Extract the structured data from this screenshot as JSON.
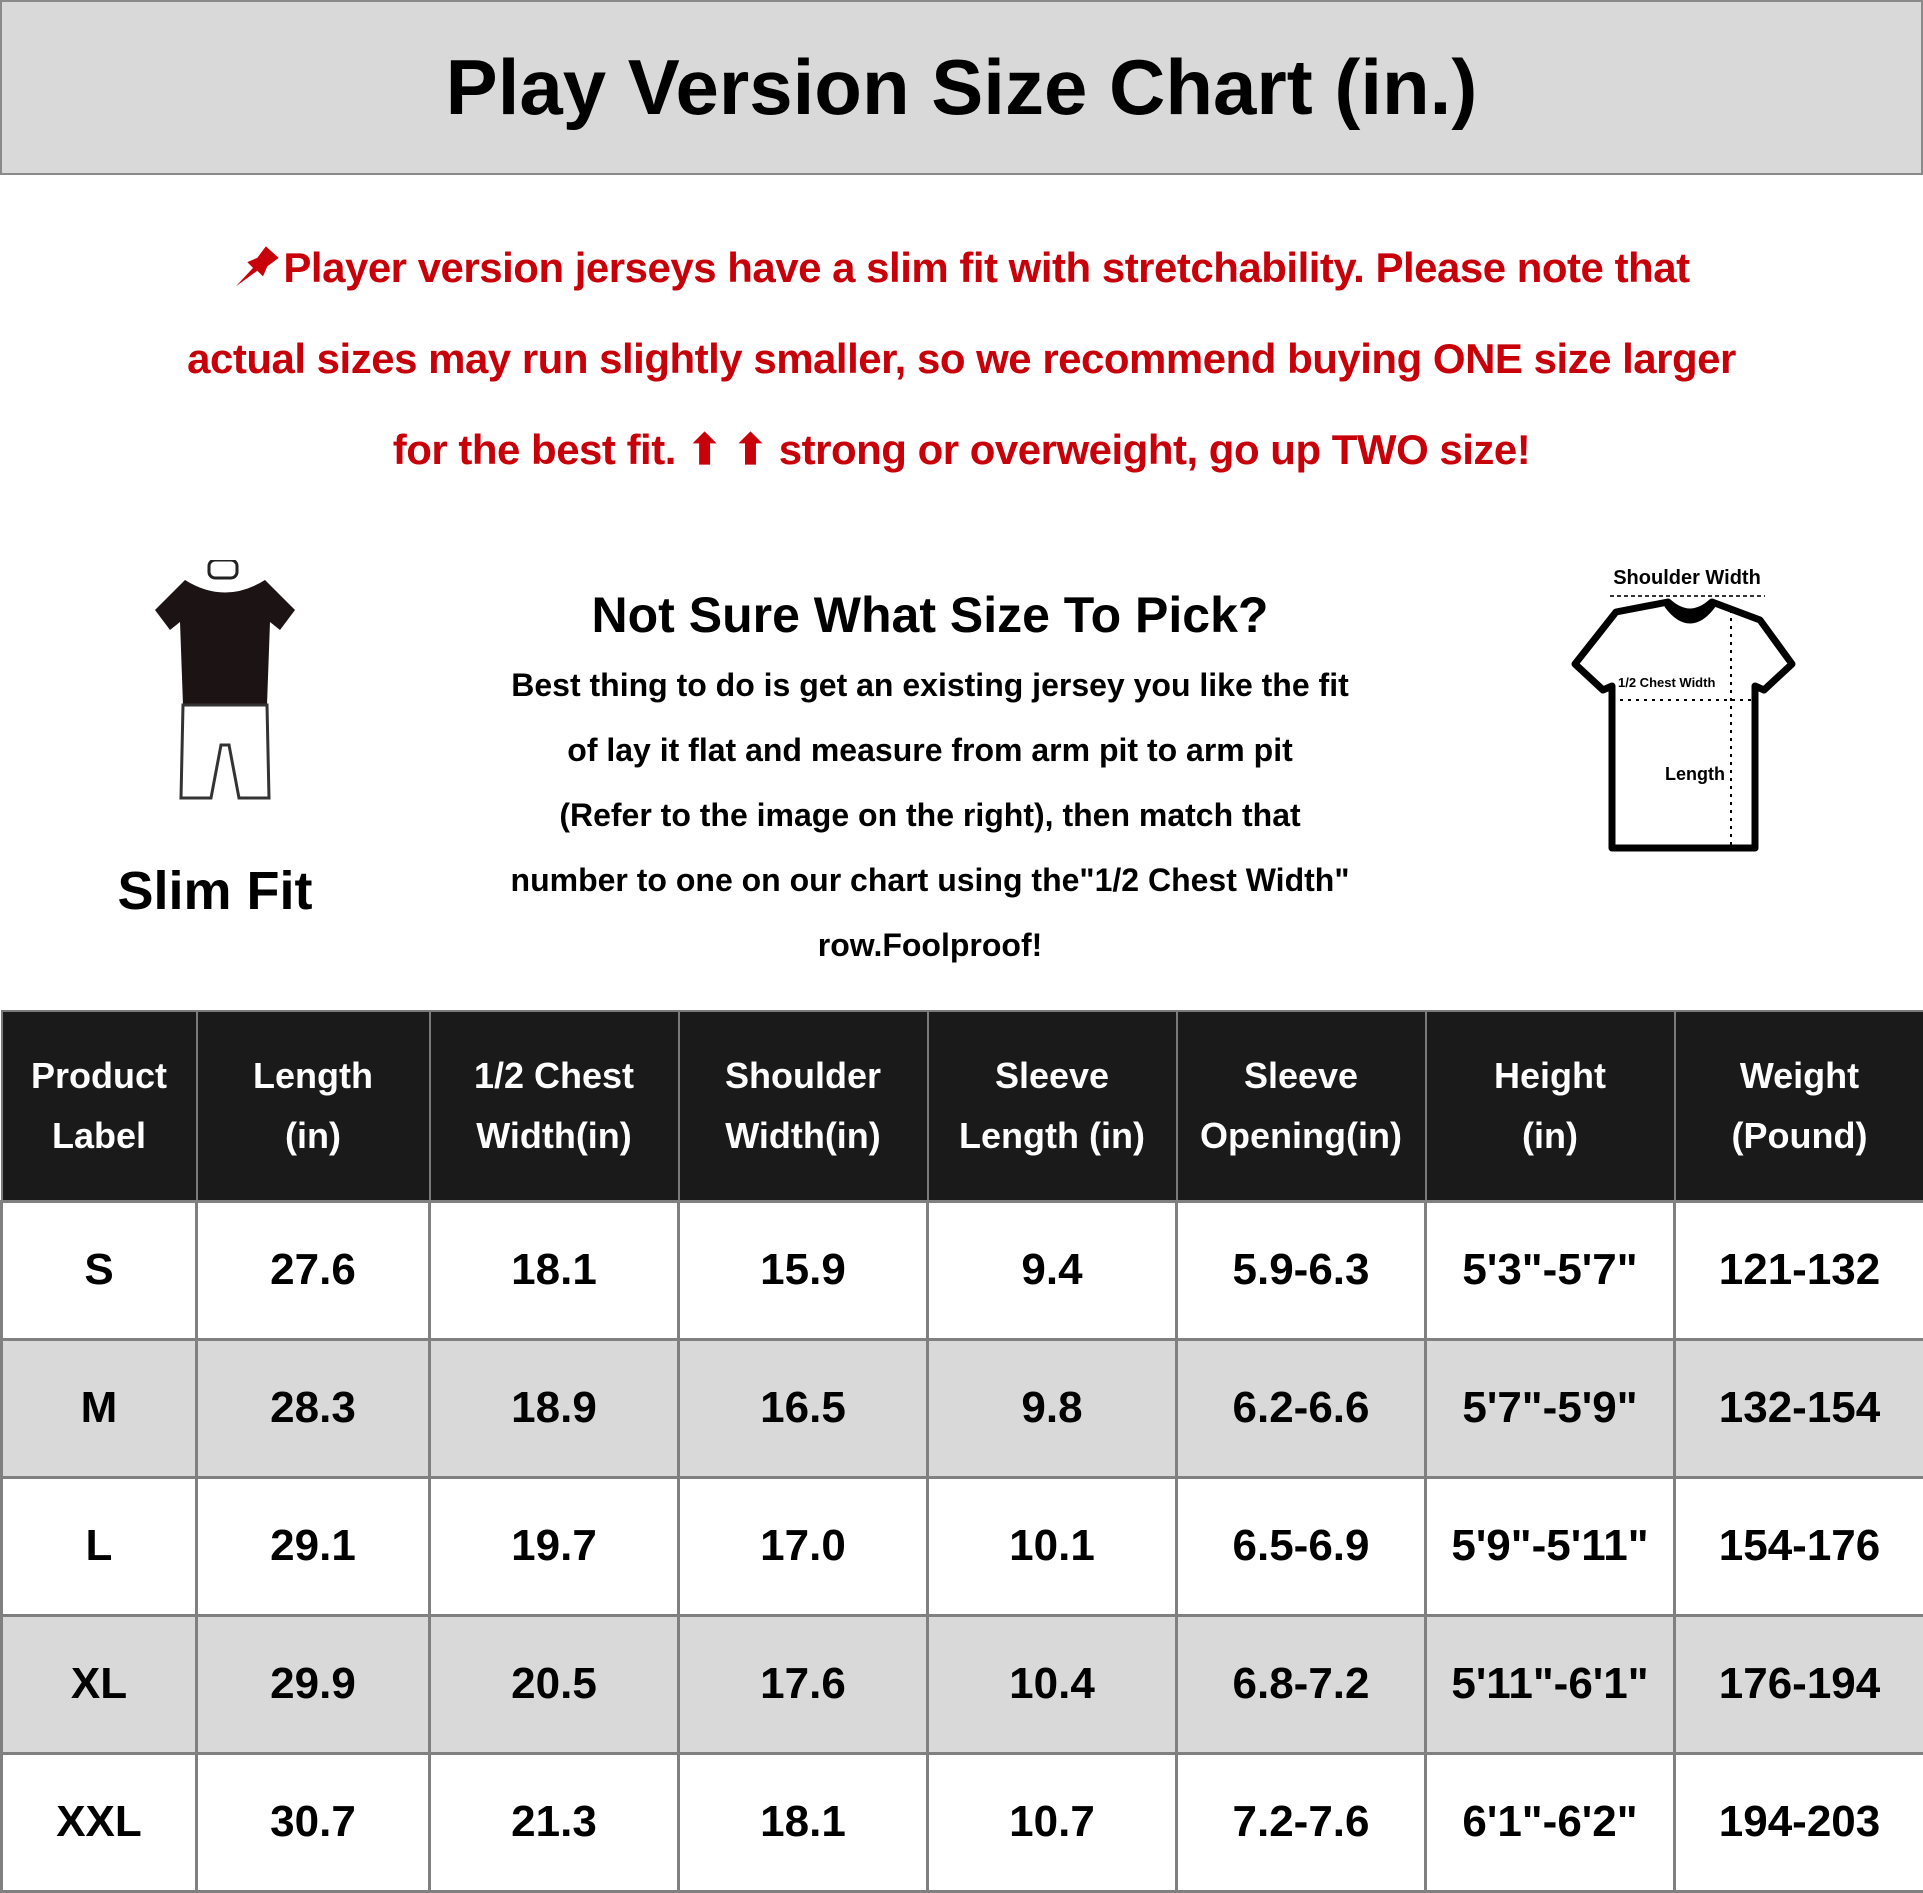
{
  "title": "Play Version Size Chart (in.)",
  "notice": {
    "icon": "pushpin-icon",
    "color": "#c8000a",
    "lines": [
      "Player version jerseys have a slim fit with stretchability. Please note that",
      "actual sizes may run slightly smaller, so we recommend buying ONE size larger",
      "for the best fit. ⬆ ⬆ strong or overweight, go up TWO size!"
    ]
  },
  "fit": {
    "label": "Slim Fit",
    "icon": "mannequin-icon"
  },
  "guide": {
    "heading": "Not Sure What Size To Pick?",
    "lines": [
      "Best thing to do is get an existing jersey you like the fit",
      "of lay it flat and measure from arm pit to arm pit",
      "(Refer to the image on the right), then match that",
      "number to one on our chart using the\"1/2 Chest Width\"",
      "row.Foolproof!"
    ]
  },
  "diagram": {
    "shoulder": "Shoulder Width",
    "chest": "1/2 Chest Width",
    "length": "Length"
  },
  "table": {
    "headers": [
      [
        "Product",
        "Label"
      ],
      [
        "Length",
        "(in)"
      ],
      [
        "1/2 Chest",
        "Width(in)"
      ],
      [
        "Shoulder",
        "Width(in)"
      ],
      [
        "Sleeve",
        "Length (in)"
      ],
      [
        "Sleeve",
        "Opening(in)"
      ],
      [
        "Height",
        "(in)"
      ],
      [
        "Weight",
        "(Pound)"
      ]
    ],
    "rows": [
      [
        "S",
        "27.6",
        "18.1",
        "15.9",
        "9.4",
        "5.9-6.3",
        "5'3\"-5'7\"",
        "121-132"
      ],
      [
        "M",
        "28.3",
        "18.9",
        "16.5",
        "9.8",
        "6.2-6.6",
        "5'7\"-5'9\"",
        "132-154"
      ],
      [
        "L",
        "29.1",
        "19.7",
        "17.0",
        "10.1",
        "6.5-6.9",
        "5'9\"-5'11\"",
        "154-176"
      ],
      [
        "XL",
        "29.9",
        "20.5",
        "17.6",
        "10.4",
        "6.8-7.2",
        "5'11\"-6'1\"",
        "176-194"
      ],
      [
        "XXL",
        "30.7",
        "21.3",
        "18.1",
        "10.7",
        "7.2-7.6",
        "6'1\"-6'2\"",
        "194-203"
      ]
    ]
  }
}
